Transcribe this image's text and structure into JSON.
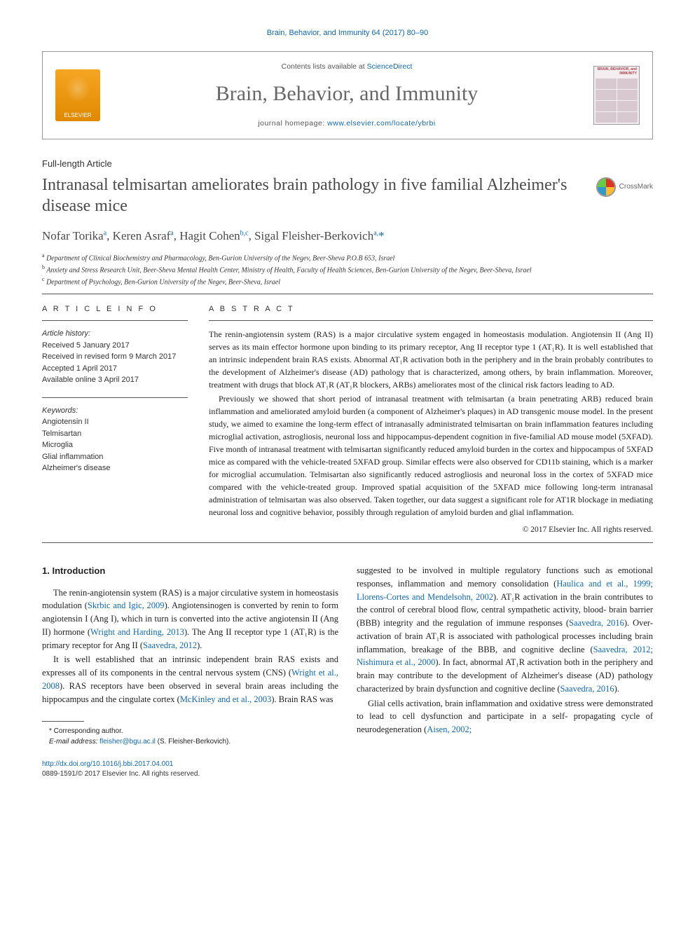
{
  "journal_ref": "Brain, Behavior, and Immunity 64 (2017) 80–90",
  "header": {
    "elsevier_label": "ELSEVIER",
    "contents_prefix": "Contents lists available at ",
    "contents_link": "ScienceDirect",
    "journal_name": "Brain, Behavior, and Immunity",
    "homepage_prefix": "journal homepage: ",
    "homepage_link": "www.elsevier.com/locate/ybrbi",
    "cover_title": "BRAIN, BEHAVIOR, and IMMUNITY"
  },
  "article_type": "Full-length Article",
  "title": "Intranasal telmisartan ameliorates brain pathology in five familial Alzheimer's disease mice",
  "crossmark_label": "CrossMark",
  "authors_html": "Nofar Torika<sup>a</sup>, Keren Asraf<sup>a</sup>, Hagit Cohen<sup>b,c</sup>, Sigal Fleisher-Berkovich<sup>a,</sup><span class='star'>*</span>",
  "affiliations": [
    {
      "sup": "a",
      "text": "Department of Clinical Biochemistry and Pharmacology, Ben-Gurion University of the Negev, Beer-Sheva P.O.B 653, Israel"
    },
    {
      "sup": "b",
      "text": "Anxiety and Stress Research Unit, Beer-Sheva Mental Health Center, Ministry of Health, Faculty of Health Sciences, Ben-Gurion University of the Negev, Beer-Sheva, Israel"
    },
    {
      "sup": "c",
      "text": "Department of Psychology, Ben-Gurion University of the Negev, Beer-Sheva, Israel"
    }
  ],
  "info_label": "A R T I C L E   I N F O",
  "abstract_label": "A B S T R A C T",
  "history": {
    "label": "Article history:",
    "received": "Received 5 January 2017",
    "revised": "Received in revised form 9 March 2017",
    "accepted": "Accepted 1 April 2017",
    "online": "Available online 3 April 2017"
  },
  "keywords": {
    "label": "Keywords:",
    "items": [
      "Angiotensin II",
      "Telmisartan",
      "Microglia",
      "Glial inflammation",
      "Alzheimer's disease"
    ]
  },
  "abstract": {
    "p1": "The renin-angiotensin system (RAS) is a major circulative system engaged in homeostasis modulation. Angiotensin II (Ang II) serves as its main effector hormone upon binding to its primary receptor, Ang II receptor type 1 (AT₁R). It is well established that an intrinsic independent brain RAS exists. Abnormal AT₁R activation both in the periphery and in the brain probably contributes to the development of Alzheimer's disease (AD) pathology that is characterized, among others, by brain inflammation. Moreover, treatment with drugs that block AT₁R (AT₁R blockers, ARBs) ameliorates most of the clinical risk factors leading to AD.",
    "p2": "Previously we showed that short period of intranasal treatment with telmisartan (a brain penetrating ARB) reduced brain inflammation and ameliorated amyloid burden (a component of Alzheimer's plaques) in AD transgenic mouse model. In the present study, we aimed to examine the long-term effect of intranasally administrated telmisartan on brain inflammation features including microglial activation, astrogliosis, neuronal loss and hippocampus-dependent cognition in five-familial AD mouse model (5XFAD). Five month of intranasal treatment with telmisartan significantly reduced amyloid burden in the cortex and hippocampus of 5XFAD mice as compared with the vehicle-treated 5XFAD group. Similar effects were also observed for CD11b staining, which is a marker for microglial accumulation. Telmisartan also significantly reduced astrogliosis and neuronal loss in the cortex of 5XFAD mice compared with the vehicle-treated group. Improved spatial acquisition of the 5XFAD mice following long-term intranasal administration of telmisartan was also observed. Taken together, our data suggest a significant role for AT1R blockage in mediating neuronal loss and cognitive behavior, possibly through regulation of amyloid burden and glial inflammation."
  },
  "copyright": "© 2017 Elsevier Inc. All rights reserved.",
  "intro": {
    "heading": "1. Introduction",
    "left_p1_a": "The renin-angiotensin system (RAS) is a major circulative system in homeostasis modulation (",
    "left_p1_ref1": "Skrbic and Igic, 2009",
    "left_p1_b": "). Angiotensinogen is converted by renin to form angiotensin I (Ang I), which in turn is converted into the active angiotensin II (Ang II) hormone (",
    "left_p1_ref2": "Wright and Harding, 2013",
    "left_p1_c": "). The Ang II receptor type 1 (AT₁R) is the primary receptor for Ang II (",
    "left_p1_ref3": "Saavedra, 2012",
    "left_p1_d": ").",
    "left_p2_a": "It is well established that an intrinsic independent brain RAS exists and expresses all of its components in the central nervous system (CNS) (",
    "left_p2_ref1": "Wright et al., 2008",
    "left_p2_b": "). RAS receptors have been observed in several brain areas including the hippocampus and the cingulate cortex (",
    "left_p2_ref2": "McKinley and et al., 2003",
    "left_p2_c": "). Brain RAS was",
    "right_p1_a": "suggested to be involved in multiple regulatory functions such as emotional responses, inflammation and memory consolidation (",
    "right_p1_ref1": "Haulica and et al., 1999; Llorens-Cortes and Mendelsohn, 2002",
    "right_p1_b": "). AT₁R activation in the brain contributes to the control of cerebral blood flow, central sympathetic activity, blood- brain barrier (BBB) integrity and the regulation of immune responses (",
    "right_p1_ref2": "Saavedra, 2016",
    "right_p1_c": "). Over-activation of brain AT₁R is associated with pathological processes including brain inflammation, breakage of the BBB, and cognitive decline (",
    "right_p1_ref3": "Saavedra, 2012; Nishimura et al., 2000",
    "right_p1_d": "). In fact, abnormal AT₁R activation both in the periphery and brain may contribute to the development of Alzheimer's disease (AD) pathology characterized by brain dysfunction and cognitive decline (",
    "right_p1_ref4": "Saavedra, 2016",
    "right_p1_e": ").",
    "right_p2_a": "Glial cells activation, brain inflammation and oxidative stress were demonstrated to lead to cell dysfunction and participate in a self- propagating cycle of neurodegeneration (",
    "right_p2_ref1": "Aisen, 2002;"
  },
  "corresponding": {
    "star_label": "* Corresponding author.",
    "email_label": "E-mail address: ",
    "email": "fleisher@bgu.ac.il",
    "email_suffix": " (S. Fleisher-Berkovich)."
  },
  "footer": {
    "doi": "http://dx.doi.org/10.1016/j.bbi.2017.04.001",
    "issn_line": "0889-1591/© 2017 Elsevier Inc. All rights reserved."
  }
}
